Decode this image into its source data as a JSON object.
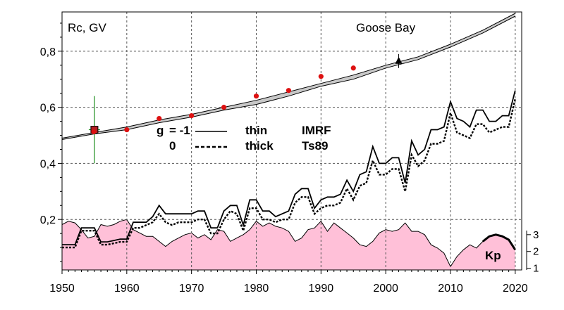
{
  "chart_data": {
    "type": "line",
    "title": "Goose Bay",
    "ylabel": "Rc, GV",
    "xlabel": "",
    "xlim": [
      1950,
      2021
    ],
    "ylim": [
      0.02,
      0.94
    ],
    "x_ticks": [
      "1950",
      "1960",
      "1970",
      "1980",
      "1990",
      "2000",
      "2010",
      "2020"
    ],
    "y_ticks": [
      "0,2",
      "0,4",
      "0,6",
      "0,8"
    ],
    "y_tick_values": [
      0.2,
      0.4,
      0.6,
      0.8
    ],
    "grid": true,
    "legend": {
      "g_label": "g",
      "rows": [
        {
          "g": "= -1",
          "line": "solid",
          "width": "thin",
          "model": "IMRF"
        },
        {
          "g": "0",
          "line": "dotted",
          "width": "thick",
          "model": "Ts89"
        }
      ]
    },
    "series": [
      {
        "style": "solid-thin",
        "color": "#000000",
        "x": [
          1950,
          1951,
          1952,
          1953,
          1954,
          1955,
          1956,
          1957,
          1958,
          1959,
          1960,
          1961,
          1962,
          1963,
          1964,
          1965,
          1966,
          1967,
          1968,
          1969,
          1970,
          1971,
          1972,
          1973,
          1974,
          1975,
          1976,
          1977,
          1978,
          1979,
          1980,
          1981,
          1982,
          1983,
          1984,
          1985,
          1986,
          1987,
          1988,
          1989,
          1990,
          1991,
          1992,
          1993,
          1994,
          1995,
          1996,
          1997,
          1998,
          1999,
          2000,
          2001,
          2002,
          2003,
          2004,
          2005,
          2006,
          2007,
          2008,
          2009,
          2010,
          2011,
          2012,
          2013,
          2014,
          2015,
          2016,
          2017,
          2018,
          2019,
          2020
        ],
        "y": [
          0.11,
          0.11,
          0.11,
          0.17,
          0.17,
          0.17,
          0.12,
          0.12,
          0.125,
          0.13,
          0.13,
          0.19,
          0.19,
          0.19,
          0.21,
          0.25,
          0.22,
          0.22,
          0.22,
          0.22,
          0.22,
          0.23,
          0.23,
          0.17,
          0.17,
          0.23,
          0.25,
          0.25,
          0.18,
          0.27,
          0.27,
          0.23,
          0.23,
          0.21,
          0.22,
          0.23,
          0.29,
          0.31,
          0.31,
          0.24,
          0.27,
          0.28,
          0.28,
          0.29,
          0.34,
          0.3,
          0.36,
          0.37,
          0.46,
          0.4,
          0.4,
          0.42,
          0.42,
          0.33,
          0.48,
          0.43,
          0.45,
          0.52,
          0.52,
          0.53,
          0.62,
          0.56,
          0.55,
          0.53,
          0.59,
          0.59,
          0.55,
          0.55,
          0.57,
          0.57,
          0.66
        ]
      },
      {
        "style": "dotted-thick",
        "color": "#000000",
        "x": [
          1950,
          1951,
          1952,
          1953,
          1954,
          1955,
          1956,
          1957,
          1958,
          1959,
          1960,
          1961,
          1962,
          1963,
          1964,
          1965,
          1966,
          1967,
          1968,
          1969,
          1970,
          1971,
          1972,
          1973,
          1974,
          1975,
          1976,
          1977,
          1978,
          1979,
          1980,
          1981,
          1982,
          1983,
          1984,
          1985,
          1986,
          1987,
          1988,
          1989,
          1990,
          1991,
          1992,
          1993,
          1994,
          1995,
          1996,
          1997,
          1998,
          1999,
          2000,
          2001,
          2002,
          2003,
          2004,
          2005,
          2006,
          2007,
          2008,
          2009,
          2010,
          2011,
          2012,
          2013,
          2014,
          2015,
          2016,
          2017,
          2018,
          2019,
          2020
        ],
        "y": [
          0.1,
          0.1,
          0.1,
          0.16,
          0.16,
          0.16,
          0.11,
          0.11,
          0.115,
          0.12,
          0.12,
          0.17,
          0.17,
          0.18,
          0.19,
          0.22,
          0.19,
          0.18,
          0.19,
          0.19,
          0.19,
          0.2,
          0.2,
          0.15,
          0.15,
          0.2,
          0.23,
          0.22,
          0.16,
          0.24,
          0.24,
          0.2,
          0.2,
          0.19,
          0.2,
          0.2,
          0.26,
          0.28,
          0.28,
          0.22,
          0.24,
          0.25,
          0.25,
          0.26,
          0.31,
          0.27,
          0.32,
          0.33,
          0.41,
          0.36,
          0.36,
          0.38,
          0.38,
          0.3,
          0.43,
          0.39,
          0.41,
          0.47,
          0.47,
          0.48,
          0.58,
          0.51,
          0.5,
          0.49,
          0.54,
          0.54,
          0.51,
          0.52,
          0.53,
          0.53,
          0.63
        ]
      },
      {
        "style": "band-upper",
        "color": "#000000",
        "x": [
          1950,
          1955,
          1960,
          1965,
          1970,
          1975,
          1980,
          1985,
          1990,
          1995,
          2000,
          2005,
          2010,
          2015,
          2020
        ],
        "y": [
          0.49,
          0.51,
          0.53,
          0.555,
          0.575,
          0.6,
          0.625,
          0.655,
          0.685,
          0.715,
          0.75,
          0.78,
          0.825,
          0.875,
          0.935
        ]
      },
      {
        "style": "band-lower",
        "color": "#000000",
        "x": [
          1950,
          1955,
          1960,
          1965,
          1970,
          1975,
          1980,
          1985,
          1990,
          1995,
          2000,
          2005,
          2010,
          2015,
          2020
        ],
        "y": [
          0.485,
          0.505,
          0.52,
          0.545,
          0.565,
          0.59,
          0.61,
          0.64,
          0.675,
          0.7,
          0.74,
          0.77,
          0.815,
          0.865,
          0.925
        ]
      }
    ],
    "points": {
      "red_dots": {
        "color": "#dd1111",
        "x": [
          1960,
          1965,
          1970,
          1975,
          1980,
          1985,
          1990,
          1995
        ],
        "y": [
          0.52,
          0.56,
          0.57,
          0.6,
          0.64,
          0.66,
          0.71,
          0.74
        ]
      },
      "square": {
        "x": 1955,
        "y": 0.52,
        "err_low": 0.4,
        "err_high": 0.64,
        "color": "#b02020",
        "err_color": "#1a8c1a"
      },
      "triangle": {
        "x": 2002,
        "y": 0.765,
        "err_low": 0.74,
        "err_high": 0.79,
        "color": "#000000"
      }
    },
    "kp_panel": {
      "label": "Kp",
      "ticks": [
        "3",
        "2",
        "1"
      ],
      "tick_values": [
        3,
        2,
        1
      ],
      "ylim": [
        0.9,
        4.5
      ],
      "fill_color": "#ffc0d8",
      "x": [
        1950,
        1951,
        1952,
        1953,
        1954,
        1955,
        1956,
        1957,
        1958,
        1959,
        1960,
        1961,
        1962,
        1963,
        1964,
        1965,
        1966,
        1967,
        1968,
        1969,
        1970,
        1971,
        1972,
        1973,
        1974,
        1975,
        1976,
        1977,
        1978,
        1979,
        1980,
        1981,
        1982,
        1983,
        1984,
        1985,
        1986,
        1987,
        1988,
        1989,
        1990,
        1991,
        1992,
        1993,
        1994,
        1995,
        1996,
        1997,
        1998,
        1999,
        2000,
        2001,
        2002,
        2003,
        2004,
        2005,
        2006,
        2007,
        2008,
        2009,
        2010,
        2011,
        2012,
        2013,
        2014,
        2015,
        2016,
        2017,
        2018,
        2019,
        2020
      ],
      "y": [
        3.6,
        3.8,
        3.7,
        3.3,
        2.8,
        2.9,
        3.6,
        3.5,
        3.6,
        3.8,
        3.9,
        3.3,
        3.1,
        2.9,
        2.9,
        2.6,
        2.3,
        2.6,
        2.8,
        3.0,
        3.1,
        2.8,
        3.0,
        2.7,
        3.3,
        3.2,
        2.6,
        2.8,
        3.0,
        3.3,
        3.8,
        3.5,
        3.7,
        3.5,
        3.4,
        3.2,
        2.6,
        2.8,
        3.3,
        3.4,
        3.8,
        3.2,
        3.7,
        3.4,
        3.1,
        2.8,
        2.4,
        2.3,
        2.6,
        3.1,
        3.3,
        3.2,
        3.3,
        3.7,
        3.2,
        3.2,
        3.0,
        2.4,
        2.2,
        1.9,
        1.1,
        1.7,
        2.1,
        2.4,
        2.2,
        2.6,
        2.9,
        3.0,
        2.9,
        2.7,
        2.1
      ],
      "highlight": {
        "x": [
          2015,
          2016,
          2017,
          2018,
          2019,
          2020
        ],
        "y": [
          2.6,
          2.9,
          3.0,
          2.9,
          2.7,
          2.1
        ]
      }
    }
  }
}
